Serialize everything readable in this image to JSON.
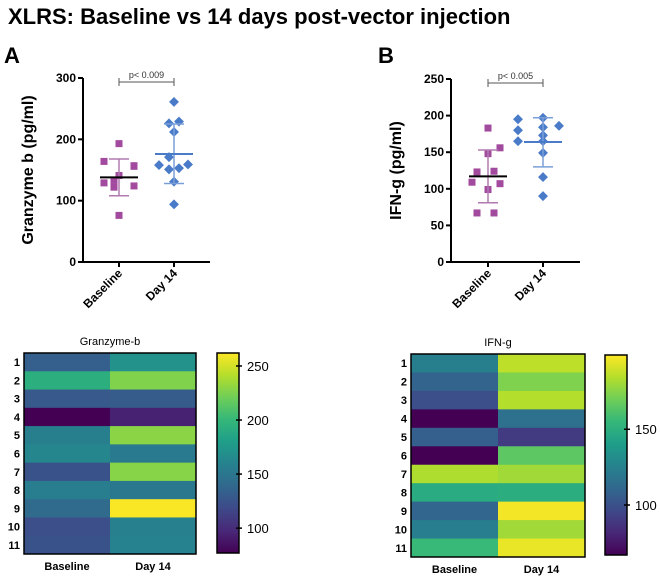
{
  "title": "XLRS: Baseline vs 14 days post-vector injection",
  "colors": {
    "baseline": "#a24a9d",
    "day14": "#4a7bc9",
    "baseline_mean": "#000000",
    "day14_mean": "#4a7bc9"
  },
  "chart_data": [
    {
      "type": "scatter",
      "panel": "A",
      "ylabel": "Granzyme b (pg/ml)",
      "ylim": [
        0,
        300
      ],
      "yticks": [
        0,
        100,
        200,
        300
      ],
      "categories": [
        "Baseline",
        "Day 14"
      ],
      "pvalue": "p< 0.009",
      "series": [
        {
          "name": "Baseline",
          "values": [
            193,
            164,
            156,
            157,
            141,
            133,
            129,
            122,
            124,
            76
          ],
          "mean": 138,
          "sd_low": 108,
          "sd_high": 168
        },
        {
          "name": "Day 14",
          "values": [
            261,
            226,
            229,
            212,
            171,
            158,
            151,
            153,
            159,
            131,
            94
          ],
          "mean": 176,
          "sd_low": 128,
          "sd_high": 225
        }
      ]
    },
    {
      "type": "scatter",
      "panel": "B",
      "ylabel": "IFN-g (pg/ml)",
      "ylim": [
        0,
        250
      ],
      "yticks": [
        0,
        50,
        100,
        150,
        200,
        250
      ],
      "categories": [
        "Baseline",
        "Day 14"
      ],
      "pvalue": "p< 0.005",
      "series": [
        {
          "name": "Baseline",
          "values": [
            183,
            156,
            148,
            123,
            124,
            109,
            107,
            99,
            67,
            67
          ],
          "mean": 117,
          "sd_low": 81,
          "sd_high": 153
        },
        {
          "name": "Day 14",
          "values": [
            195,
            197,
            186,
            180,
            184,
            173,
            165,
            165,
            149,
            116,
            90
          ],
          "mean": 164,
          "sd_low": 130,
          "sd_high": 197
        }
      ]
    },
    {
      "type": "heatmap",
      "title": "Granzyme-b",
      "rows": [
        "1",
        "2",
        "3",
        "4",
        "5",
        "6",
        "7",
        "8",
        "9",
        "10",
        "11"
      ],
      "columns": [
        "Baseline",
        "Day 14"
      ],
      "values": [
        [
          133,
          171
        ],
        [
          193,
          226
        ],
        [
          129,
          131
        ],
        [
          76,
          94
        ],
        [
          157,
          229
        ],
        [
          163,
          153
        ],
        [
          124,
          228
        ],
        [
          156,
          151
        ],
        [
          141,
          261
        ],
        [
          122,
          158
        ],
        [
          124,
          159
        ]
      ],
      "colorbar": {
        "range": [
          77,
          262
        ],
        "ticks": [
          100,
          150,
          200,
          250
        ]
      }
    },
    {
      "type": "heatmap",
      "title": "IFN-g",
      "rows": [
        "1",
        "2",
        "3",
        "4",
        "5",
        "6",
        "7",
        "8",
        "9",
        "10",
        "11"
      ],
      "columns": [
        "Baseline",
        "Day 14"
      ],
      "values": [
        [
          124,
          186
        ],
        [
          109,
          173
        ],
        [
          99,
          184
        ],
        [
          67,
          116
        ],
        [
          107,
          90
        ],
        [
          67,
          165
        ],
        [
          183,
          180
        ],
        [
          148,
          149
        ],
        [
          110,
          197
        ],
        [
          123,
          180
        ],
        [
          156,
          195
        ]
      ],
      "colorbar": {
        "range": [
          67,
          199
        ],
        "ticks": [
          100,
          150
        ]
      }
    }
  ]
}
